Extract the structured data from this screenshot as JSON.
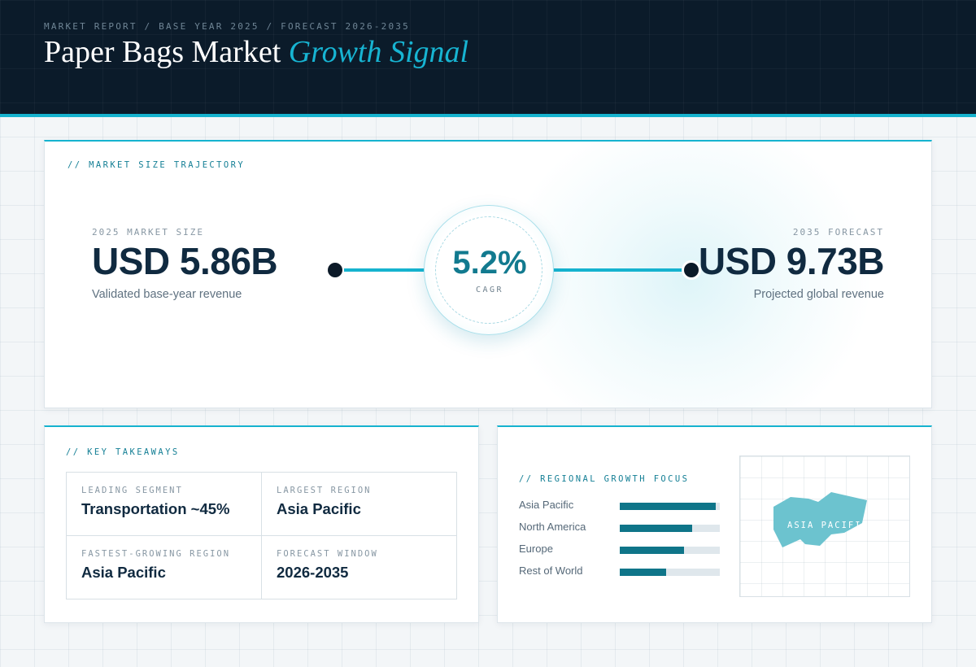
{
  "header": {
    "breadcrumb": "MARKET REPORT / BASE YEAR 2025 / FORECAST 2026-2035",
    "title_main": "Paper Bags Market",
    "title_accent": "Growth Signal"
  },
  "trajectory": {
    "label": "// MARKET SIZE TRAJECTORY",
    "start": {
      "caption": "2025 MARKET SIZE",
      "value": "USD 5.86B",
      "description": "Validated base-year revenue"
    },
    "cagr": {
      "value": "5.2%",
      "label": "CAGR"
    },
    "end": {
      "caption": "2035 FORECAST",
      "value": "USD 9.73B",
      "description": "Projected global revenue"
    }
  },
  "takeaways": {
    "label": "// KEY TAKEAWAYS",
    "items": [
      {
        "caption": "LEADING SEGMENT",
        "value": "Transportation ~45%"
      },
      {
        "caption": "LARGEST REGION",
        "value": "Asia Pacific"
      },
      {
        "caption": "FASTEST-GROWING REGION",
        "value": "Asia Pacific"
      },
      {
        "caption": "FORECAST WINDOW",
        "value": "2026-2035"
      }
    ]
  },
  "regional": {
    "label": "// REGIONAL GROWTH FOCUS",
    "regions": [
      {
        "name": "Asia Pacific",
        "level": 0.96
      },
      {
        "name": "North America",
        "level": 0.72
      },
      {
        "name": "Europe",
        "level": 0.64
      },
      {
        "name": "Rest of World",
        "level": 0.46
      }
    ],
    "map_label": "ASIA PACIFIC",
    "colors": {
      "bar": "#0f7589",
      "track": "#dfe7ec",
      "map_shape": "#6cc3cf"
    }
  }
}
